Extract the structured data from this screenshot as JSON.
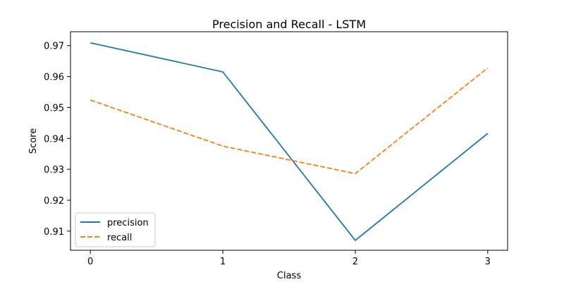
{
  "chart_data": {
    "type": "line",
    "title": "Precision and Recall - LSTM",
    "xlabel": "Class",
    "ylabel": "Score",
    "x": [
      0,
      1,
      2,
      3
    ],
    "xlim": [
      -0.15,
      3.15
    ],
    "ylim": [
      0.9038,
      0.9745
    ],
    "yticks": [
      0.91,
      0.92,
      0.93,
      0.94,
      0.95,
      0.96,
      0.97
    ],
    "ytick_labels": [
      "0.91",
      "0.92",
      "0.93",
      "0.94",
      "0.95",
      "0.96",
      "0.97"
    ],
    "xtick_labels": [
      "0",
      "1",
      "2",
      "3"
    ],
    "grid": false,
    "legend_position": "bottom-left",
    "series": [
      {
        "name": "precision",
        "values": [
          0.9709,
          0.9615,
          0.907,
          0.9416
        ],
        "color": "#1f77b4",
        "style": "solid"
      },
      {
        "name": "recall",
        "values": [
          0.9524,
          0.9375,
          0.9286,
          0.9628
        ],
        "color": "#ff7f0e",
        "style": "dashed"
      }
    ]
  }
}
